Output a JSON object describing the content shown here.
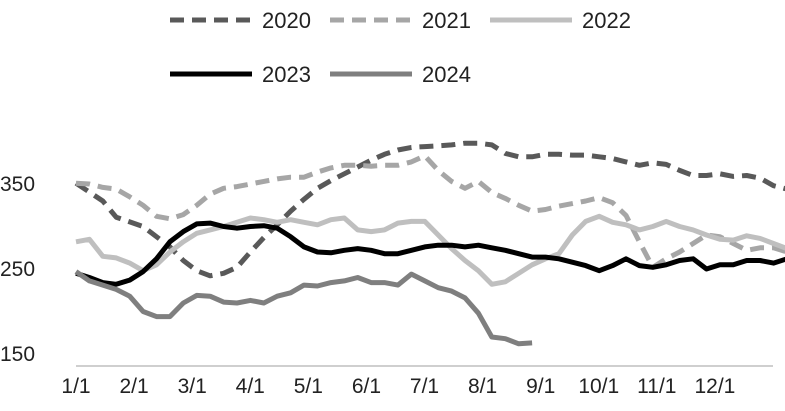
{
  "chart_data": {
    "type": "line",
    "title": "",
    "xlabel": "",
    "ylabel": "",
    "ylim": [
      150,
      410
    ],
    "yticks": [
      150,
      250,
      350
    ],
    "grid": false,
    "legend": "top",
    "x_ticks": [
      "1/1",
      "2/1",
      "3/1",
      "4/1",
      "5/1",
      "6/1",
      "7/1",
      "8/1",
      "9/1",
      "10/1",
      "11/1",
      "12/1"
    ],
    "x_range": [
      1,
      53
    ],
    "series": [
      {
        "name": "2020",
        "color": "#595959",
        "dash": "dash",
        "points": [
          [
            1,
            351
          ],
          [
            3,
            330
          ],
          [
            4,
            311
          ],
          [
            6,
            300
          ],
          [
            8,
            276
          ],
          [
            9,
            260
          ],
          [
            10,
            248
          ],
          [
            11,
            242
          ],
          [
            12,
            245
          ],
          [
            13,
            252
          ],
          [
            14,
            270
          ],
          [
            15,
            287
          ],
          [
            16,
            302
          ],
          [
            17,
            318
          ],
          [
            18,
            332
          ],
          [
            19,
            345
          ],
          [
            20,
            354
          ],
          [
            21,
            362
          ],
          [
            22,
            370
          ],
          [
            23,
            378
          ],
          [
            24,
            385
          ],
          [
            25,
            390
          ],
          [
            26,
            393
          ],
          [
            27,
            394
          ],
          [
            28,
            395
          ],
          [
            29,
            396
          ],
          [
            30,
            398
          ],
          [
            31,
            398
          ],
          [
            32,
            396
          ],
          [
            33,
            386
          ],
          [
            34,
            382
          ],
          [
            35,
            382
          ],
          [
            36,
            385
          ],
          [
            37,
            385
          ],
          [
            38,
            384
          ],
          [
            39,
            384
          ],
          [
            40,
            382
          ],
          [
            41,
            380
          ],
          [
            42,
            376
          ],
          [
            43,
            372
          ],
          [
            44,
            375
          ],
          [
            45,
            373
          ],
          [
            46,
            366
          ],
          [
            47,
            360
          ],
          [
            48,
            360
          ],
          [
            49,
            362
          ],
          [
            50,
            359
          ],
          [
            51,
            360
          ],
          [
            52,
            357
          ],
          [
            53,
            348
          ],
          [
            54,
            344
          ]
        ]
      },
      {
        "name": "2021",
        "color": "#a6a6a6",
        "dash": "dash",
        "points": [
          [
            1,
            351
          ],
          [
            2,
            350
          ],
          [
            3,
            346
          ],
          [
            4,
            344
          ],
          [
            5,
            335
          ],
          [
            6,
            325
          ],
          [
            7,
            312
          ],
          [
            8,
            309
          ],
          [
            9,
            314
          ],
          [
            10,
            325
          ],
          [
            11,
            338
          ],
          [
            12,
            345
          ],
          [
            13,
            347
          ],
          [
            14,
            350
          ],
          [
            15,
            353
          ],
          [
            16,
            356
          ],
          [
            17,
            358
          ],
          [
            18,
            358
          ],
          [
            19,
            364
          ],
          [
            20,
            369
          ],
          [
            21,
            372
          ],
          [
            22,
            372
          ],
          [
            23,
            371
          ],
          [
            24,
            372
          ],
          [
            25,
            372
          ],
          [
            26,
            376
          ],
          [
            27,
            383
          ],
          [
            28,
            366
          ],
          [
            29,
            353
          ],
          [
            30,
            345
          ],
          [
            31,
            353
          ],
          [
            32,
            340
          ],
          [
            33,
            333
          ],
          [
            34,
            325
          ],
          [
            35,
            318
          ],
          [
            36,
            320
          ],
          [
            37,
            324
          ],
          [
            38,
            327
          ],
          [
            39,
            330
          ],
          [
            40,
            334
          ],
          [
            41,
            328
          ],
          [
            42,
            313
          ],
          [
            43,
            282
          ],
          [
            44,
            252
          ],
          [
            45,
            262
          ],
          [
            46,
            270
          ],
          [
            47,
            280
          ],
          [
            48,
            290
          ],
          [
            49,
            288
          ],
          [
            50,
            280
          ],
          [
            51,
            272
          ],
          [
            52,
            275
          ],
          [
            53,
            275
          ],
          [
            54,
            270
          ],
          [
            55,
            268
          ]
        ]
      },
      {
        "name": "2022",
        "color": "#bfbfbf",
        "dash": "solid",
        "points": [
          [
            1,
            282
          ],
          [
            2,
            285
          ],
          [
            3,
            265
          ],
          [
            4,
            263
          ],
          [
            5,
            257
          ],
          [
            6,
            248
          ],
          [
            7,
            255
          ],
          [
            8,
            270
          ],
          [
            9,
            282
          ],
          [
            10,
            292
          ],
          [
            11,
            296
          ],
          [
            12,
            300
          ],
          [
            13,
            305
          ],
          [
            14,
            310
          ],
          [
            15,
            308
          ],
          [
            16,
            305
          ],
          [
            17,
            308
          ],
          [
            18,
            305
          ],
          [
            19,
            302
          ],
          [
            20,
            308
          ],
          [
            21,
            310
          ],
          [
            22,
            296
          ],
          [
            23,
            294
          ],
          [
            24,
            296
          ],
          [
            25,
            304
          ],
          [
            26,
            306
          ],
          [
            27,
            306
          ],
          [
            28,
            290
          ],
          [
            29,
            274
          ],
          [
            30,
            260
          ],
          [
            31,
            248
          ],
          [
            32,
            232
          ],
          [
            33,
            235
          ],
          [
            34,
            245
          ],
          [
            35,
            255
          ],
          [
            36,
            262
          ],
          [
            37,
            268
          ],
          [
            38,
            290
          ],
          [
            39,
            306
          ],
          [
            40,
            312
          ],
          [
            41,
            305
          ],
          [
            42,
            302
          ],
          [
            43,
            296
          ],
          [
            44,
            300
          ],
          [
            45,
            306
          ],
          [
            46,
            300
          ],
          [
            47,
            296
          ],
          [
            48,
            290
          ],
          [
            49,
            285
          ],
          [
            50,
            284
          ],
          [
            51,
            289
          ],
          [
            52,
            286
          ],
          [
            53,
            280
          ],
          [
            54,
            274
          ],
          [
            55,
            268
          ]
        ]
      },
      {
        "name": "2023",
        "color": "#000000",
        "dash": "solid",
        "points": [
          [
            1,
            245
          ],
          [
            2,
            240
          ],
          [
            3,
            234
          ],
          [
            4,
            232
          ],
          [
            5,
            237
          ],
          [
            6,
            247
          ],
          [
            7,
            262
          ],
          [
            8,
            282
          ],
          [
            9,
            294
          ],
          [
            10,
            303
          ],
          [
            11,
            304
          ],
          [
            12,
            300
          ],
          [
            13,
            298
          ],
          [
            14,
            300
          ],
          [
            15,
            301
          ],
          [
            16,
            298
          ],
          [
            17,
            288
          ],
          [
            18,
            276
          ],
          [
            19,
            270
          ],
          [
            20,
            269
          ],
          [
            21,
            272
          ],
          [
            22,
            274
          ],
          [
            23,
            272
          ],
          [
            24,
            268
          ],
          [
            25,
            268
          ],
          [
            26,
            272
          ],
          [
            27,
            276
          ],
          [
            28,
            278
          ],
          [
            29,
            278
          ],
          [
            30,
            276
          ],
          [
            31,
            278
          ],
          [
            32,
            275
          ],
          [
            33,
            272
          ],
          [
            34,
            268
          ],
          [
            35,
            264
          ],
          [
            36,
            264
          ],
          [
            37,
            262
          ],
          [
            38,
            258
          ],
          [
            39,
            254
          ],
          [
            40,
            248
          ],
          [
            41,
            254
          ],
          [
            42,
            262
          ],
          [
            43,
            254
          ],
          [
            44,
            252
          ],
          [
            45,
            255
          ],
          [
            46,
            260
          ],
          [
            47,
            262
          ],
          [
            48,
            250
          ],
          [
            49,
            255
          ],
          [
            50,
            255
          ],
          [
            51,
            260
          ],
          [
            52,
            260
          ],
          [
            53,
            257
          ],
          [
            54,
            262
          ],
          [
            55,
            252
          ]
        ]
      },
      {
        "name": "2024",
        "color": "#7f7f7f",
        "dash": "solid",
        "points": [
          [
            1,
            247
          ],
          [
            2,
            236
          ],
          [
            3,
            231
          ],
          [
            4,
            226
          ],
          [
            5,
            218
          ],
          [
            6,
            200
          ],
          [
            7,
            194
          ],
          [
            8,
            194
          ],
          [
            9,
            210
          ],
          [
            10,
            219
          ],
          [
            11,
            218
          ],
          [
            12,
            211
          ],
          [
            13,
            210
          ],
          [
            14,
            213
          ],
          [
            15,
            210
          ],
          [
            16,
            218
          ],
          [
            17,
            222
          ],
          [
            18,
            231
          ],
          [
            19,
            230
          ],
          [
            20,
            234
          ],
          [
            21,
            236
          ],
          [
            22,
            240
          ],
          [
            23,
            234
          ],
          [
            24,
            234
          ],
          [
            25,
            231
          ],
          [
            26,
            244
          ],
          [
            27,
            236
          ],
          [
            28,
            228
          ],
          [
            29,
            224
          ],
          [
            30,
            216
          ],
          [
            31,
            198
          ],
          [
            32,
            170
          ],
          [
            33,
            168
          ],
          [
            34,
            162
          ],
          [
            35,
            163
          ]
        ]
      }
    ]
  }
}
